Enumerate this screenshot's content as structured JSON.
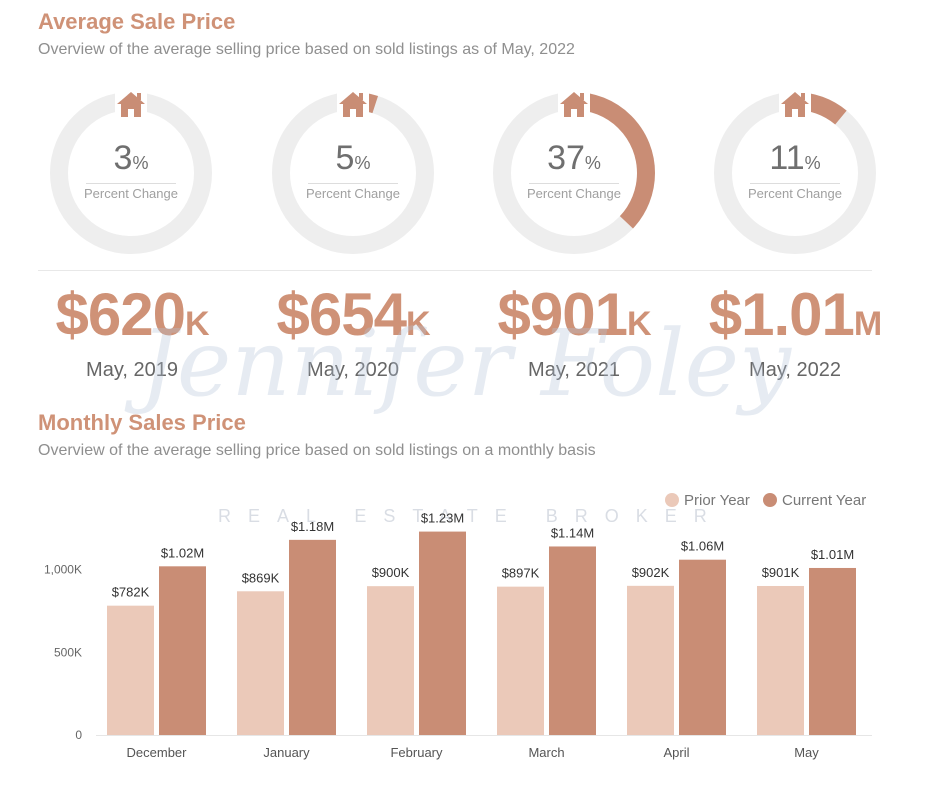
{
  "header": {
    "title": "Average Sale Price",
    "subtitle": "Overview of the average selling price based on sold listings as of May, 2022"
  },
  "rings": [
    {
      "value": "3",
      "unit": "%",
      "label": "Percent Change",
      "fraction": 0.03
    },
    {
      "value": "5",
      "unit": "%",
      "label": "Percent Change",
      "fraction": 0.05
    },
    {
      "value": "37",
      "unit": "%",
      "label": "Percent Change",
      "fraction": 0.37
    },
    {
      "value": "11",
      "unit": "%",
      "label": "Percent Change",
      "fraction": 0.11
    }
  ],
  "prices": [
    {
      "amount": "$620",
      "unit": "K",
      "date": "May, 2019"
    },
    {
      "amount": "$654",
      "unit": "K",
      "date": "May, 2020"
    },
    {
      "amount": "$901",
      "unit": "K",
      "date": "May, 2021"
    },
    {
      "amount": "$1.01",
      "unit": "M",
      "date": "May, 2022"
    }
  ],
  "watermark": {
    "name": "Jennifer Foley",
    "tagline": "REAL ESTATE BROKER"
  },
  "monthly": {
    "title": "Monthly Sales Price",
    "subtitle": "Overview of the average selling price based on sold listings on a monthly basis"
  },
  "colors": {
    "accent": "#cf9277",
    "prior": "#ebc9b9",
    "current": "#c98d75",
    "ring_track": "#eeeeee"
  },
  "chart_data": {
    "type": "bar",
    "categories": [
      "December",
      "January",
      "February",
      "March",
      "April",
      "May"
    ],
    "series": [
      {
        "name": "Prior Year",
        "values": [
          782000,
          869000,
          900000,
          897000,
          902000,
          901000
        ],
        "labels": [
          "$782K",
          "$869K",
          "$900K",
          "$897K",
          "$902K",
          "$901K"
        ]
      },
      {
        "name": "Current Year",
        "values": [
          1020000,
          1180000,
          1230000,
          1140000,
          1060000,
          1010000
        ],
        "labels": [
          "$1.02M",
          "$1.18M",
          "$1.23M",
          "$1.14M",
          "$1.06M",
          "$1.01M"
        ]
      }
    ],
    "yticks": [
      {
        "value": 0,
        "label": "0"
      },
      {
        "value": 500000,
        "label": "500K"
      },
      {
        "value": 1000000,
        "label": "1,000K"
      }
    ],
    "ylim": [
      0,
      1300000
    ],
    "legend": "top-right",
    "grid": false
  }
}
